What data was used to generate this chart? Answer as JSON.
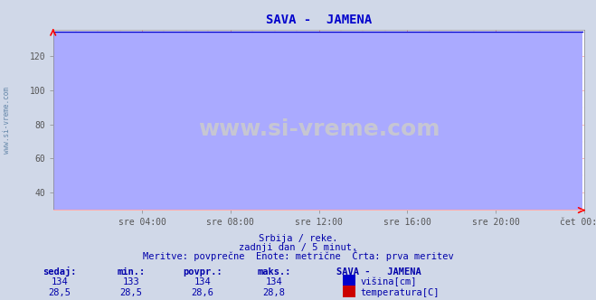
{
  "title": "SAVA -  JAMENA",
  "subtitle1": "Srbija / reke.",
  "subtitle2": "zadnji dan / 5 minut.",
  "subtitle3": "Meritve: povprečne  Enote: metrične  Črta: prva meritev",
  "xlabel_ticks": [
    "sre 04:00",
    "sre 08:00",
    "sre 12:00",
    "sre 16:00",
    "sre 20:00",
    "čet 00:00"
  ],
  "ylabel_ticks": [
    40,
    60,
    80,
    100,
    120
  ],
  "ylim": [
    30,
    135
  ],
  "xlim": [
    0,
    288
  ],
  "height_value": "134",
  "height_min": "133",
  "height_avg": "134",
  "height_max": "134",
  "temp_value": "28,5",
  "temp_min": "28,5",
  "temp_avg": "28,6",
  "temp_max": "28,8",
  "height_color": "#0000cc",
  "temp_color": "#cc0000",
  "bg_color": "#d0d8e8",
  "plot_bg_color": "#ffffff",
  "grid_color_major": "#ffaaaa",
  "grid_color_minor": "#ffdddd",
  "watermark": "www.si-vreme.com",
  "label_color": "#0000aa",
  "tick_label_color": "#555555",
  "left_label": "www.si-vreme.com",
  "legend_title": "SAVA -   JAMENA",
  "legend_height_label": "višina[cm]",
  "legend_temp_label": "temperatura[C]",
  "table_headers": [
    "sedaj:",
    "min.:",
    "povpr.:",
    "maks.:"
  ],
  "n_points": 288,
  "height_flat_value": 134,
  "temp_flat_value": 28.5,
  "height_fill_color": "#aaaaff",
  "temp_fill_color": "#ffaaaa"
}
